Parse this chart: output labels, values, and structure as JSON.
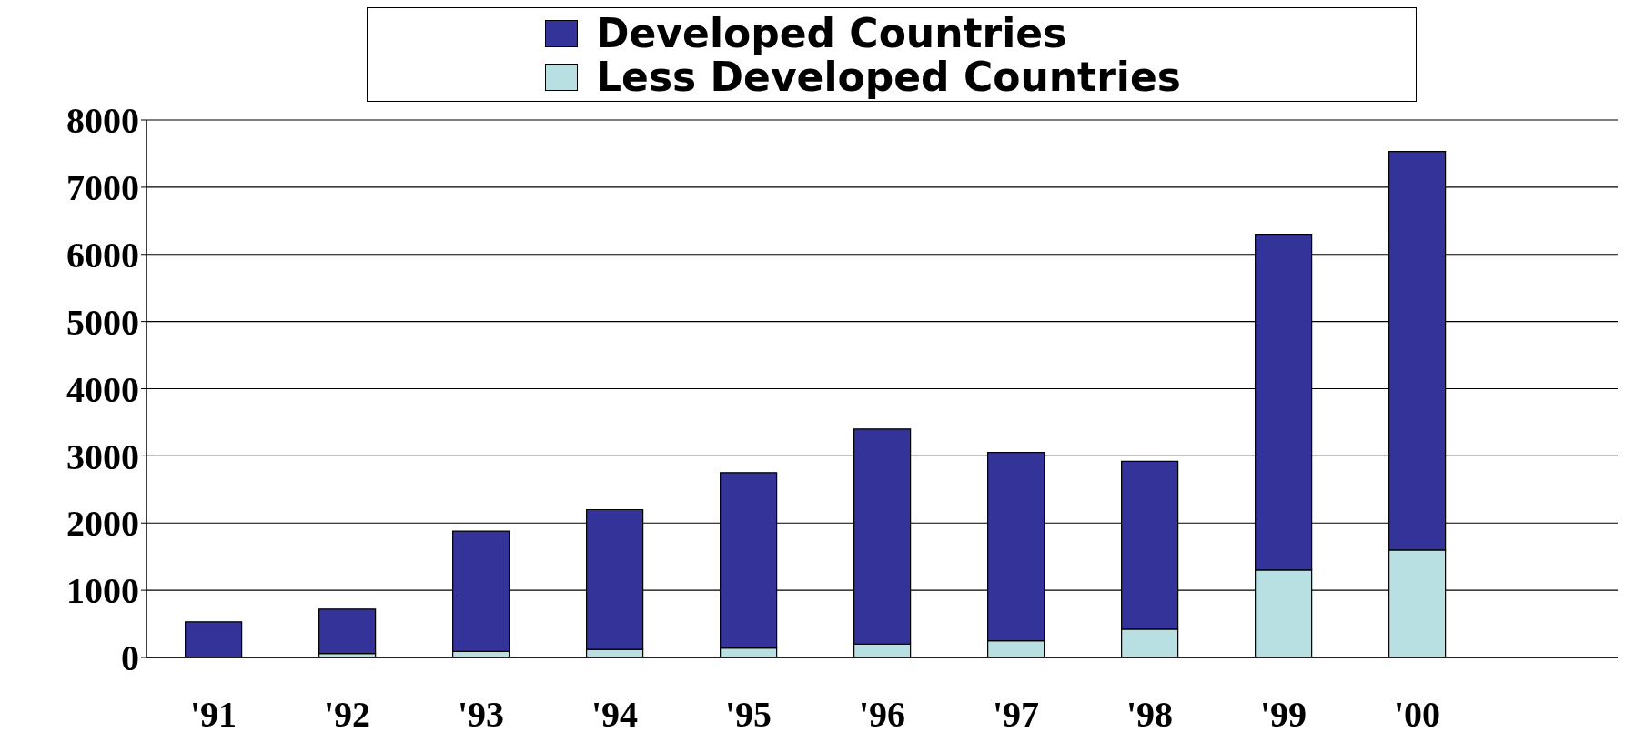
{
  "chart_data": {
    "type": "bar",
    "stacked": true,
    "categories": [
      "'91",
      "'92",
      "'93",
      "'94",
      "'95",
      "'96",
      "'97",
      "'98",
      "'99",
      "'00",
      null
    ],
    "series": [
      {
        "name": "Less Developed Countries",
        "color": "#b8e0e2",
        "values": [
          null,
          60,
          90,
          120,
          140,
          200,
          250,
          420,
          1300,
          1600,
          null
        ]
      },
      {
        "name": "Developed Countries",
        "color": "#333399",
        "values": [
          530,
          660,
          1790,
          2080,
          2610,
          3200,
          2800,
          2500,
          5000,
          5930,
          null
        ]
      }
    ],
    "ylim": [
      0,
      8000
    ],
    "yticks": [
      0,
      1000,
      2000,
      3000,
      4000,
      5000,
      6000,
      7000,
      8000
    ],
    "grid": "y",
    "legend": "top"
  }
}
